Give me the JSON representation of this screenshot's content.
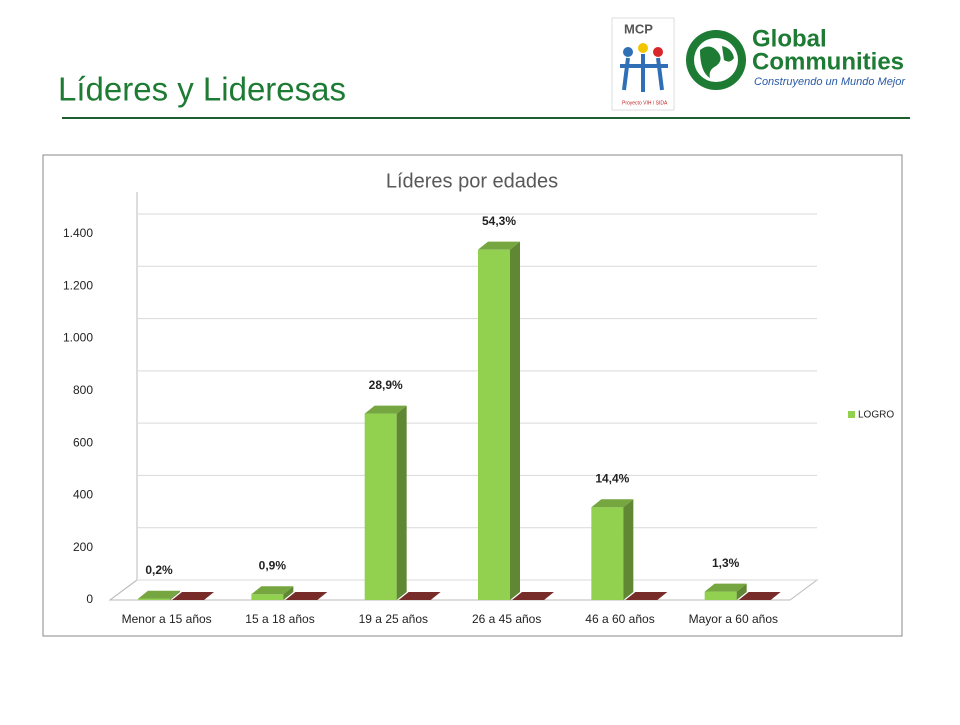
{
  "slide": {
    "title": "Líderes y Lideresas",
    "logos": {
      "mcp": "MCP",
      "mcp_note": "Proyecto VIH / SIDA",
      "gc_line1": "Global",
      "gc_line2": "Communities",
      "gc_tagline": "Construyendo un Mundo Mejor"
    }
  },
  "chart_data": {
    "type": "bar3d",
    "title": "Líderes por edades",
    "categories": [
      "Menor a 15 años",
      "15 a 18 años",
      "19 a 25 años",
      "26 a 45 años",
      "46 a 60 años",
      "Mayor a 60 años"
    ],
    "series": [
      {
        "name": "LOGRO",
        "color": "#92d050",
        "values": [
          5,
          22,
          713,
          1340,
          355,
          32
        ]
      },
      {
        "color": "#953735",
        "values": [
          0,
          0,
          0,
          0,
          0,
          0
        ]
      }
    ],
    "data_labels": [
      "0,2%",
      "0,9%",
      "28,9%",
      "54,3%",
      "14,4%",
      "1,3%"
    ],
    "ylim": [
      0,
      1400
    ],
    "yticks": [
      0,
      200,
      400,
      600,
      800,
      {
        "value": 1000,
        "label": "1.000"
      },
      {
        "value": 1200,
        "label": "1.200"
      },
      {
        "value": 1400,
        "label": "1.400"
      }
    ],
    "grid": true,
    "legend": "right"
  }
}
